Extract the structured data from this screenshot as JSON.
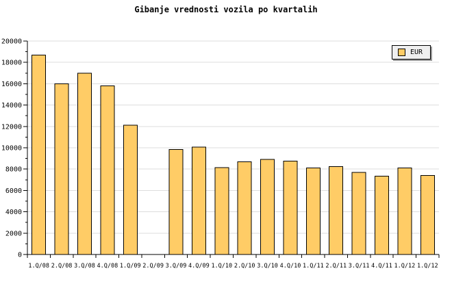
{
  "colors": {
    "background": "#ffffff",
    "bar_fill": "#FFCC66",
    "bar_stroke": "#000000",
    "gridline": "#DDDDDD",
    "axis": "#000000",
    "text": "#000000",
    "legend_bg": "#EFEFEF",
    "legend_border": "#000000",
    "legend_shadow": "#999999"
  },
  "legend": {
    "label": "EUR",
    "position": "top-right"
  },
  "chart_data": {
    "type": "bar",
    "title": "Gibanje vrednosti vozila po kvartalih",
    "xlabel": "",
    "ylabel": "",
    "categories": [
      "1.Q/08",
      "2.Q/08",
      "3.Q/08",
      "4.Q/08",
      "1.Q/09",
      "2.Q/09",
      "3.Q/09",
      "4.Q/09",
      "1.Q/10",
      "2.Q/10",
      "3.Q/10",
      "4.Q/10",
      "1.Q/11",
      "2.Q/11",
      "3.Q/11",
      "4.Q/11",
      "1.Q/12",
      "1.Q/12"
    ],
    "series": [
      {
        "name": "EUR",
        "values": [
          18700,
          16000,
          17000,
          15800,
          12100,
          null,
          9850,
          10050,
          8150,
          8700,
          8900,
          8750,
          8100,
          8250,
          7700,
          7350,
          8100,
          7400
        ]
      }
    ],
    "ylim": [
      0,
      20000
    ],
    "ytick_step": 2000,
    "ytick_minor_step": 1000,
    "ytick_labels": [
      "0",
      "2000",
      "4000",
      "6000",
      "8000",
      "10000",
      "12000",
      "14000",
      "16000",
      "18000",
      "20000"
    ],
    "grid": true,
    "legend_position": "top-right",
    "note": "no bar rendered for 2.Q/09"
  }
}
